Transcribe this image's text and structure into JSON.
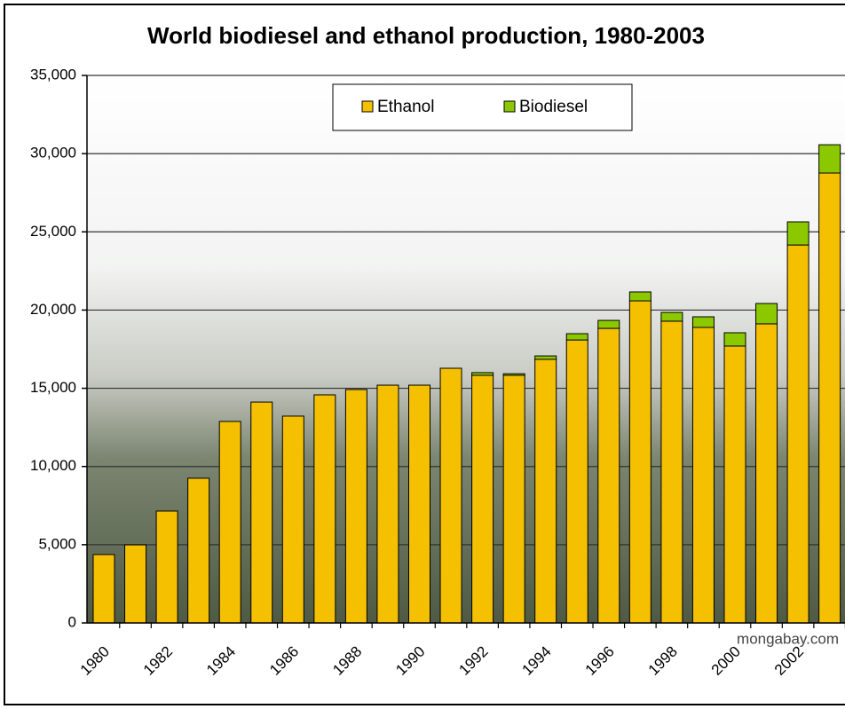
{
  "chart_data": {
    "type": "stacked-bar",
    "title": "World biodiesel and ethanol production, 1980-2003",
    "credit": "mongabay.com",
    "categories": [
      "1980",
      null,
      "1982",
      null,
      "1984",
      null,
      "1986",
      null,
      "1988",
      null,
      "1990",
      null,
      "1992",
      null,
      "1994",
      null,
      "1996",
      null,
      "1998",
      null,
      "2000",
      null,
      "2002",
      null
    ],
    "series": [
      {
        "name": "Ethanol",
        "color": "#f5c000",
        "values": [
          4370,
          4990,
          7150,
          9250,
          12880,
          14120,
          13220,
          14580,
          14920,
          15200,
          15200,
          16280,
          15830,
          15830,
          16850,
          18090,
          18830,
          20590,
          19290,
          18890,
          17700,
          19120,
          24160,
          28760
        ]
      },
      {
        "name": "Biodiesel",
        "color": "#8cc800",
        "values": [
          0,
          0,
          0,
          0,
          0,
          0,
          0,
          0,
          0,
          0,
          0,
          0,
          170,
          100,
          220,
          400,
          510,
          570,
          560,
          680,
          850,
          1300,
          1480,
          1810
        ]
      }
    ],
    "ylim": [
      0,
      35000
    ],
    "yticks": [
      0,
      {
        "value": 5000,
        "label": "5,000"
      },
      {
        "value": 10000,
        "label": "10,000"
      },
      {
        "value": 15000,
        "label": "15,000"
      },
      {
        "value": 20000,
        "label": "20,000"
      },
      {
        "value": 25000,
        "label": "25,000"
      },
      {
        "value": 30000,
        "label": "30,000"
      },
      {
        "value": 35000,
        "label": "35,000"
      }
    ],
    "grid": true,
    "legend": "top"
  }
}
